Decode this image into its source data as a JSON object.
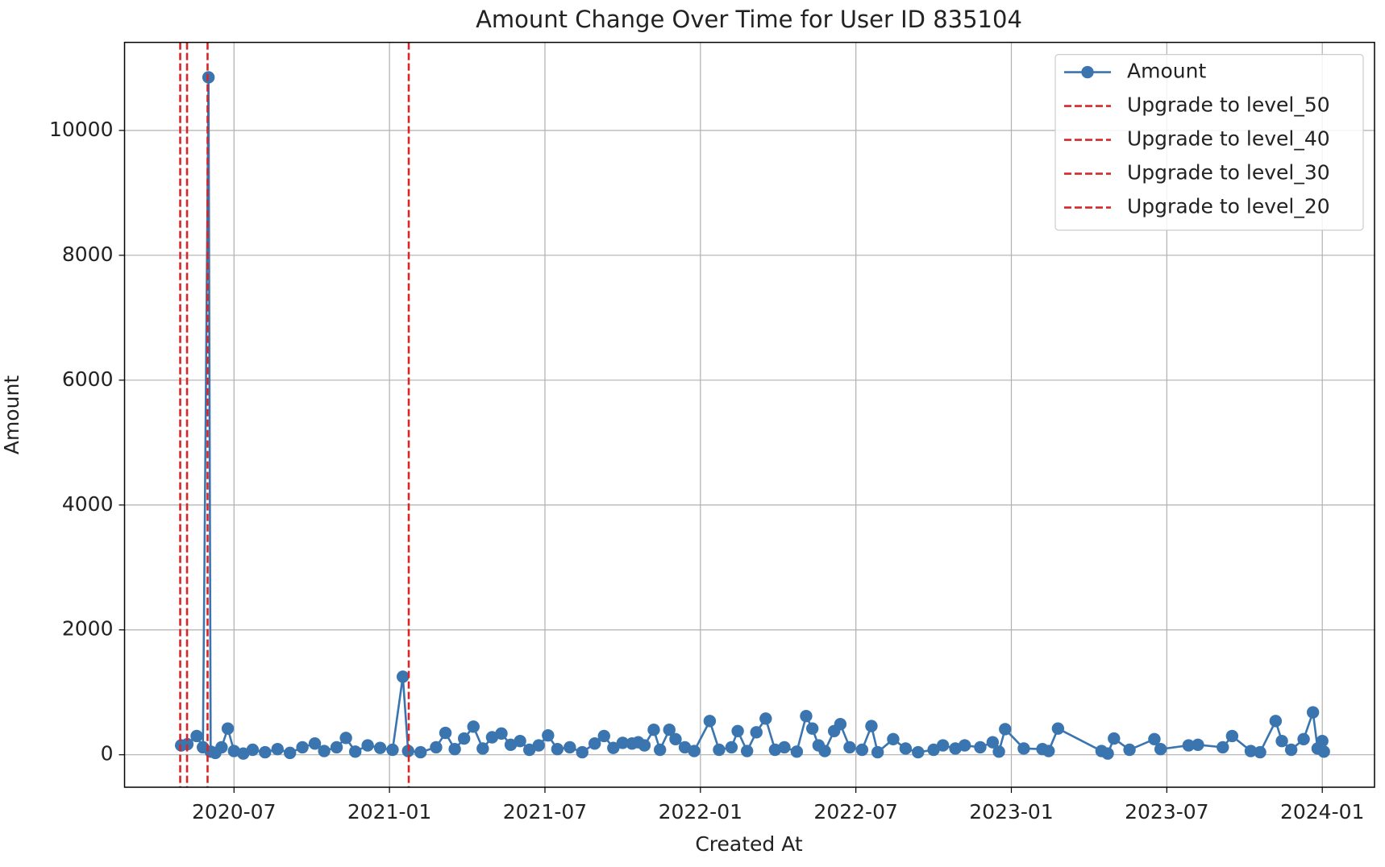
{
  "chart_data": {
    "type": "line",
    "title": "Amount Change Over Time for User ID 835104",
    "xlabel": "Created At",
    "ylabel": "Amount",
    "x": [
      2020.33,
      2020.35,
      2020.38,
      2020.4,
      2020.418,
      2020.425,
      2020.44,
      2020.46,
      2020.48,
      2020.5,
      2020.53,
      2020.56,
      2020.6,
      2020.64,
      2020.68,
      2020.72,
      2020.76,
      2020.79,
      2020.83,
      2020.86,
      2020.89,
      2020.93,
      2020.97,
      2021.01,
      2021.043,
      2021.06,
      2021.1,
      2021.15,
      2021.18,
      2021.21,
      2021.24,
      2021.27,
      2021.3,
      2021.33,
      2021.36,
      2021.39,
      2021.42,
      2021.45,
      2021.48,
      2021.51,
      2021.54,
      2021.58,
      2021.62,
      2021.66,
      2021.69,
      2021.72,
      2021.75,
      2021.78,
      2021.8,
      2021.82,
      2021.85,
      2021.87,
      2021.9,
      2021.92,
      2021.95,
      2021.98,
      2022.03,
      2022.06,
      2022.1,
      2022.12,
      2022.15,
      2022.18,
      2022.21,
      2022.24,
      2022.27,
      2022.31,
      2022.34,
      2022.36,
      2022.38,
      2022.4,
      2022.43,
      2022.45,
      2022.48,
      2022.52,
      2022.55,
      2022.57,
      2022.62,
      2022.66,
      2022.7,
      2022.75,
      2022.78,
      2022.82,
      2022.85,
      2022.9,
      2022.94,
      2022.96,
      2022.98,
      2023.04,
      2023.1,
      2023.12,
      2023.15,
      2023.29,
      2023.31,
      2023.33,
      2023.38,
      2023.46,
      2023.48,
      2023.57,
      2023.6,
      2023.68,
      2023.71,
      2023.77,
      2023.8,
      2023.85,
      2023.87,
      2023.9,
      2023.94,
      2023.97,
      2023.985,
      2024.0,
      2024.005
    ],
    "series": [
      {
        "name": "Amount",
        "color": "#3a75b0",
        "values": [
          150,
          170,
          300,
          120,
          10850,
          50,
          30,
          120,
          420,
          60,
          20,
          80,
          40,
          90,
          30,
          120,
          180,
          60,
          120,
          270,
          50,
          150,
          110,
          80,
          1250,
          60,
          40,
          120,
          350,
          90,
          260,
          450,
          100,
          280,
          340,
          160,
          220,
          80,
          150,
          310,
          90,
          120,
          40,
          180,
          300,
          110,
          190,
          180,
          200,
          150,
          400,
          80,
          400,
          250,
          120,
          60,
          540,
          80,
          120,
          380,
          60,
          360,
          580,
          80,
          120,
          50,
          620,
          420,
          150,
          60,
          380,
          490,
          120,
          80,
          460,
          40,
          250,
          100,
          40,
          80,
          150,
          100,
          150,
          120,
          200,
          50,
          410,
          100,
          90,
          60,
          420,
          60,
          20,
          260,
          80,
          250,
          90,
          150,
          160,
          120,
          300,
          60,
          40,
          540,
          220,
          80,
          250,
          680,
          100,
          220,
          50
        ]
      }
    ],
    "vlines": [
      {
        "name": "Upgrade to level_50",
        "x": 2020.327,
        "color": "#d62728"
      },
      {
        "name": "Upgrade to level_40",
        "x": 2020.349,
        "color": "#d62728"
      },
      {
        "name": "Upgrade to level_30",
        "x": 2020.415,
        "color": "#d62728"
      },
      {
        "name": "Upgrade to level_20",
        "x": 2021.062,
        "color": "#d62728"
      }
    ],
    "xlim": [
      2020.148,
      2024.168
    ],
    "ylim": [
      -520,
      11410
    ],
    "xticks": [
      {
        "value": 2020.5,
        "label": "2020-07"
      },
      {
        "value": 2021.0,
        "label": "2021-01"
      },
      {
        "value": 2021.5,
        "label": "2021-07"
      },
      {
        "value": 2022.0,
        "label": "2022-01"
      },
      {
        "value": 2022.5,
        "label": "2022-07"
      },
      {
        "value": 2023.0,
        "label": "2023-01"
      },
      {
        "value": 2023.5,
        "label": "2023-07"
      },
      {
        "value": 2024.0,
        "label": "2024-01"
      }
    ],
    "yticks": [
      0,
      2000,
      4000,
      6000,
      8000,
      10000
    ],
    "grid": true,
    "legend": "upper right"
  }
}
